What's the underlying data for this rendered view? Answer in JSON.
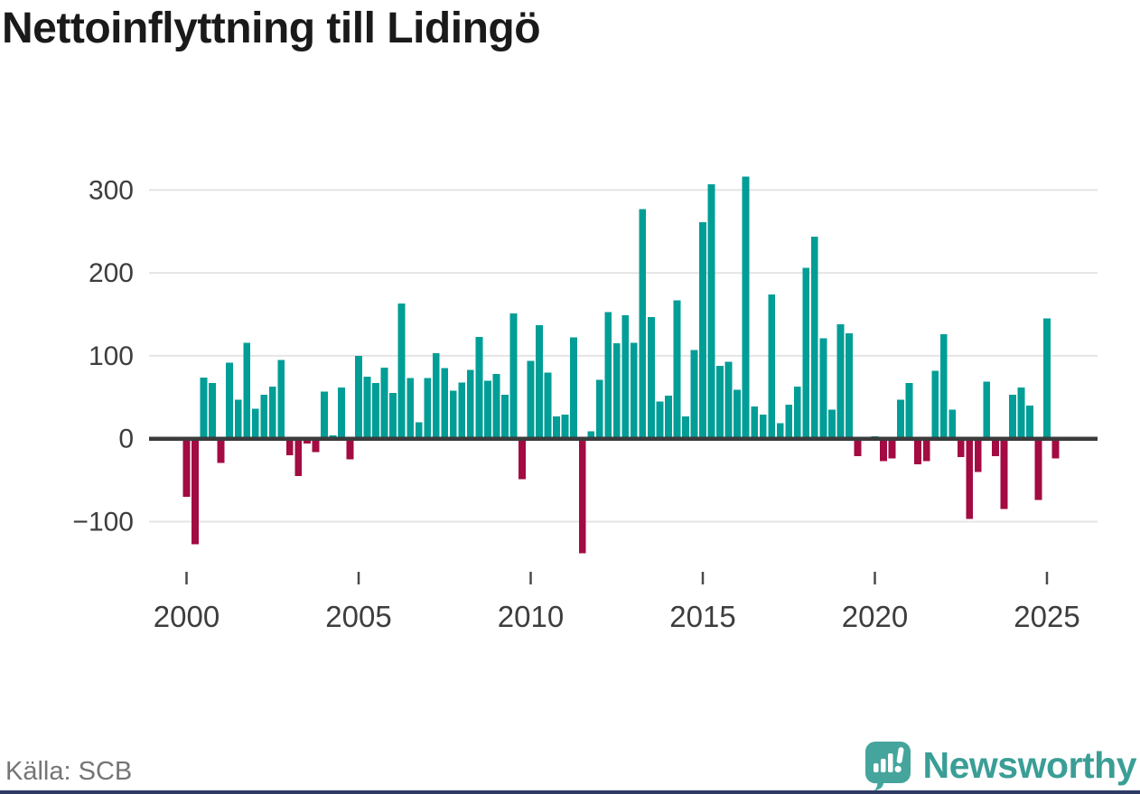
{
  "title": "Nettoinflyttning till Lidingö",
  "source_label": "Källa: SCB",
  "brand": {
    "name": "Newsworthy",
    "color": "#3A9E96",
    "icon_color": "#45A59D"
  },
  "footer_bar_color": "#2E3A64",
  "chart_data": {
    "type": "bar",
    "title": "Nettoinflyttning till Lidingö",
    "frequency": "quarterly",
    "x_start": "2000 Q1",
    "x_end": "2025 Q2",
    "categories": [
      "2000Q1",
      "2000Q2",
      "2000Q3",
      "2000Q4",
      "2001Q1",
      "2001Q2",
      "2001Q3",
      "2001Q4",
      "2002Q1",
      "2002Q2",
      "2002Q3",
      "2002Q4",
      "2003Q1",
      "2003Q2",
      "2003Q3",
      "2003Q4",
      "2004Q1",
      "2004Q2",
      "2004Q3",
      "2004Q4",
      "2005Q1",
      "2005Q2",
      "2005Q3",
      "2005Q4",
      "2006Q1",
      "2006Q2",
      "2006Q3",
      "2006Q4",
      "2007Q1",
      "2007Q2",
      "2007Q3",
      "2007Q4",
      "2008Q1",
      "2008Q2",
      "2008Q3",
      "2008Q4",
      "2009Q1",
      "2009Q2",
      "2009Q3",
      "2009Q4",
      "2010Q1",
      "2010Q2",
      "2010Q3",
      "2010Q4",
      "2011Q1",
      "2011Q2",
      "2011Q3",
      "2011Q4",
      "2012Q1",
      "2012Q2",
      "2012Q3",
      "2012Q4",
      "2013Q1",
      "2013Q2",
      "2013Q3",
      "2013Q4",
      "2014Q1",
      "2014Q2",
      "2014Q3",
      "2014Q4",
      "2015Q1",
      "2015Q2",
      "2015Q3",
      "2015Q4",
      "2016Q1",
      "2016Q2",
      "2016Q3",
      "2016Q4",
      "2017Q1",
      "2017Q2",
      "2017Q3",
      "2017Q4",
      "2018Q1",
      "2018Q2",
      "2018Q3",
      "2018Q4",
      "2019Q1",
      "2019Q2",
      "2019Q3",
      "2019Q4",
      "2020Q1",
      "2020Q2",
      "2020Q3",
      "2020Q4",
      "2021Q1",
      "2021Q2",
      "2021Q3",
      "2021Q4",
      "2022Q1",
      "2022Q2",
      "2022Q3",
      "2022Q4",
      "2023Q1",
      "2023Q2",
      "2023Q3",
      "2023Q4",
      "2024Q1",
      "2024Q2",
      "2024Q3",
      "2024Q4",
      "2025Q1",
      "2025Q2"
    ],
    "values": [
      -70,
      -127,
      74,
      67,
      -29,
      92,
      47,
      116,
      36,
      53,
      63,
      95,
      -20,
      -45,
      -6,
      -16,
      57,
      4,
      62,
      -25,
      100,
      75,
      67,
      86,
      55,
      163,
      73,
      20,
      73,
      103,
      85,
      58,
      68,
      83,
      123,
      70,
      78,
      53,
      151,
      -49,
      94,
      137,
      80,
      27,
      29,
      122,
      -138,
      9,
      71,
      153,
      115,
      149,
      116,
      277,
      147,
      45,
      52,
      167,
      27,
      107,
      261,
      307,
      88,
      93,
      59,
      316,
      39,
      29,
      174,
      19,
      41,
      63,
      206,
      244,
      121,
      35,
      138,
      127,
      -21,
      0,
      3,
      -27,
      -24,
      47,
      67,
      -31,
      -27,
      82,
      126,
      35,
      -22,
      -97,
      -40,
      69,
      -21,
      -85,
      53,
      62,
      40,
      -74,
      145,
      -24
    ],
    "colors": {
      "positive": "#009E96",
      "negative": "#A30B42"
    },
    "y_ticks": [
      300,
      200,
      100,
      0,
      -100
    ],
    "x_ticks": [
      2000,
      2005,
      2010,
      2015,
      2020,
      2025
    ],
    "ylim": [
      -145,
      330
    ],
    "grid": "horizontal",
    "legend": "none"
  }
}
